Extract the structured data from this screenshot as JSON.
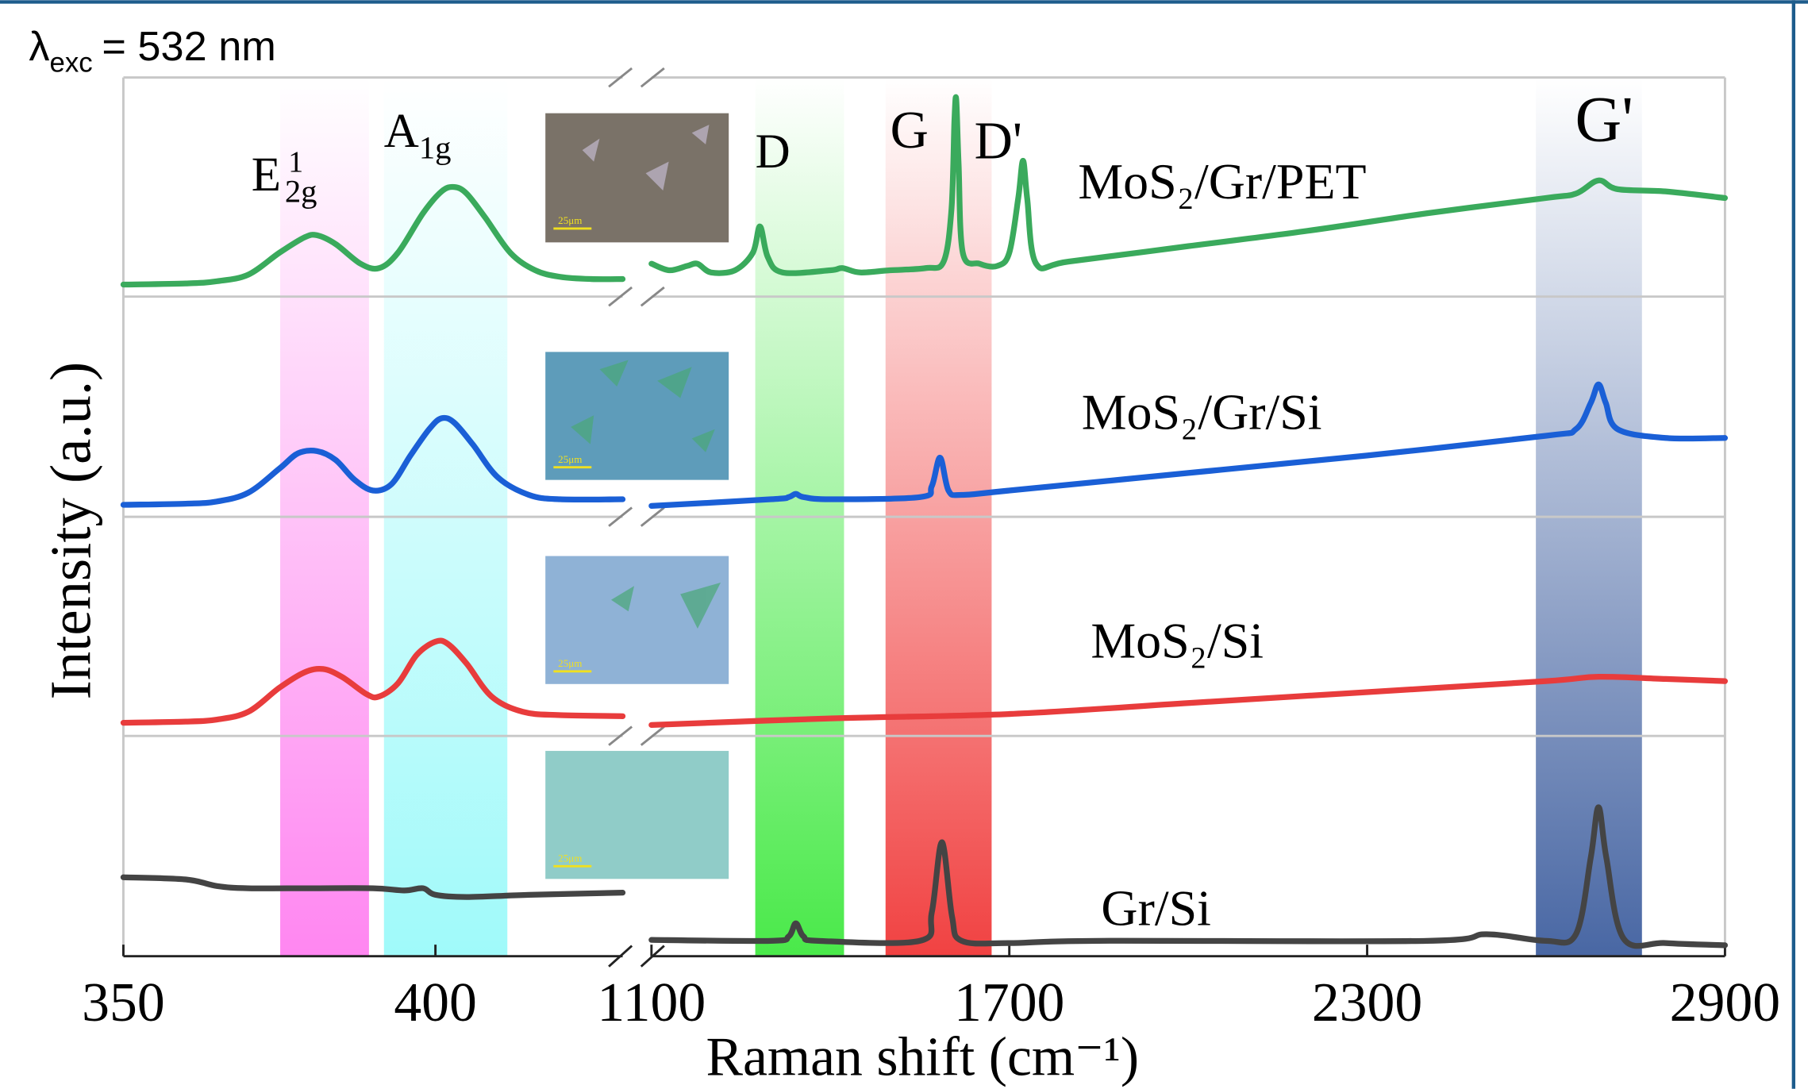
{
  "chart_data": {
    "type": "line",
    "annotation": {
      "symbol": "λ",
      "sub": "exc",
      "text": "= 532 nm"
    },
    "xlabel": "Raman shift (cm⁻¹)",
    "ylabel": "Intensity (a.u.)",
    "ylim": [
      0,
      100
    ],
    "x_segments": [
      {
        "xlim": [
          350,
          430
        ],
        "xticks": [
          350,
          400
        ]
      },
      {
        "xlim": [
          1100,
          2900
        ],
        "xticks": [
          1100,
          1700,
          2300,
          2900
        ]
      }
    ],
    "peak_labels": [
      {
        "text": "E",
        "sub": "2g",
        "sup": "1"
      },
      {
        "text": "A",
        "sub": "1g"
      },
      {
        "text": "D"
      },
      {
        "text": "G"
      },
      {
        "text": "D'"
      },
      {
        "text": "G'"
      }
    ],
    "series": [
      {
        "name": "MoS₂/Gr/PET",
        "color": "#3aaa5c",
        "segments": [
          {
            "x": [
              350,
              360,
              365,
              370,
              375,
              379,
              381,
              384,
              388,
              391,
              394,
              398,
              401,
              403,
              405,
              408,
              412,
              416,
              420,
              425,
              430
            ],
            "values": [
              5.5,
              6,
              7,
              10,
              20,
              27,
              28,
              24,
              15,
              13,
              20,
              38,
              48,
              50,
              47,
              36,
              20,
              12,
              9,
              8,
              8
            ]
          },
          {
            "x": [
              1100,
              1130,
              1160,
              1177,
              1200,
              1240,
              1270,
              1282,
              1295,
              1320,
              1400,
              1420,
              1450,
              1500,
              1560,
              1590,
              1603,
              1608,
              1611,
              1615,
              1622,
              1650,
              1680,
              1700,
              1715,
              1723,
              1730,
              1745,
              1800,
              2000,
              2200,
              2400,
              2600,
              2650,
              2688,
              2720,
              2800,
              2900
            ],
            "values": [
              15,
              12,
              14,
              15,
              11,
              12,
              20,
              32,
              18,
              11,
              12,
              13,
              11,
              12,
              13,
              16,
              40,
              80,
              90,
              60,
              20,
              15,
              14,
              20,
              45,
              62,
              45,
              15,
              16,
              23,
              30,
              38,
              45,
              47,
              53,
              49,
              48,
              45
            ]
          }
        ]
      },
      {
        "name": "MoS₂/Gr/Si",
        "color": "#1a5fd6",
        "segments": [
          {
            "x": [
              350,
              360,
              365,
              370,
              375,
              378,
              381,
              384,
              387,
              390,
              393,
              396,
              399,
              401,
              403,
              406,
              410,
              415,
              420,
              430
            ],
            "values": [
              5.5,
              6,
              7,
              11,
              22,
              29,
              30,
              26,
              17,
              12,
              15,
              28,
              40,
              45,
              43,
              33,
              18,
              10,
              8,
              8
            ]
          },
          {
            "x": [
              1100,
              1300,
              1330,
              1342,
              1355,
              1400,
              1550,
              1570,
              1584,
              1598,
              1620,
              1700,
              2000,
              2300,
              2600,
              2650,
              2675,
              2688,
              2700,
              2720,
              2800,
              2900
            ],
            "values": [
              5,
              8,
              9,
              10.5,
              9,
              8,
              9,
              14,
              27,
              12,
              10,
              12,
              20,
              28,
              37,
              40,
              52,
              60.5,
              52,
              40,
              36,
              36
            ]
          }
        ]
      },
      {
        "name": "MoS₂/Si",
        "color": "#e83c3c",
        "segments": [
          {
            "x": [
              350,
              360,
              365,
              370,
              375,
              379,
              382,
              385,
              389,
              391,
              394,
              397,
              400,
              402,
              405,
              409,
              414,
              420,
              430
            ],
            "values": [
              6,
              6.5,
              7.5,
              11,
              22,
              29,
              30.5,
              27,
              19,
              18,
              24,
              37,
              43,
              42,
              33,
              18,
              11,
              9.5,
              9
            ]
          },
          {
            "x": [
              1100,
              1400,
              1700,
              2000,
              2300,
              2600,
              2688,
              2800,
              2900
            ],
            "values": [
              5,
              8,
              10,
              15,
              20,
              25,
              27,
              26,
              25
            ]
          }
        ]
      },
      {
        "name": "Gr/Si",
        "color": "#444444",
        "segments": [
          {
            "x": [
              350,
              360,
              365,
              370,
              380,
              390,
              395,
              398,
              400,
              405,
              415,
              430
            ],
            "values": [
              36,
              35,
              32,
              31,
              31,
              31,
              30,
              31,
              28,
              27,
              28,
              29
            ]
          },
          {
            "x": [
              1100,
              1300,
              1330,
              1342,
              1355,
              1380,
              1550,
              1570,
              1587,
              1604,
              1620,
              1700,
              1850,
              2400,
              2500,
              2600,
              2650,
              2675,
              2688,
              2701,
              2730,
              2800,
              2900
            ],
            "values": [
              7.4,
              7,
              9,
              15,
              9,
              7,
              7,
              20,
              52,
              18,
              7,
              6,
              7,
              7,
              10,
              7,
              10,
              45,
              68,
              45,
              8,
              6,
              5
            ]
          }
        ]
      }
    ],
    "insets": [
      {
        "scale_bar": "25μm"
      },
      {
        "scale_bar": "25μm"
      },
      {
        "scale_bar": "25μm"
      },
      {
        "scale_bar": "25μm"
      }
    ]
  }
}
